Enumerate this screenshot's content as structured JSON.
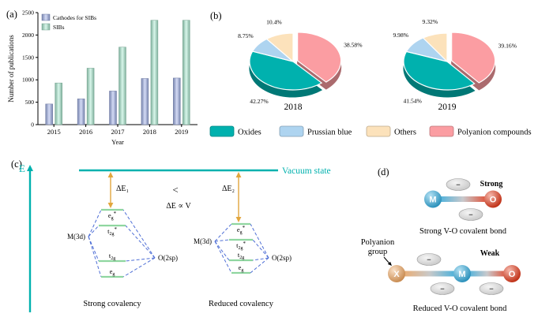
{
  "panels": {
    "a": {
      "label": "(a)"
    },
    "b": {
      "label": "(b)",
      "legend": [
        {
          "key": "oxides",
          "label": "Oxides"
        },
        {
          "key": "prussian",
          "label": "Prussian blue"
        },
        {
          "key": "others",
          "label": "Others"
        },
        {
          "key": "polyanion",
          "label": "Polyanion compounds"
        }
      ]
    },
    "c": {
      "label": "(c)",
      "axis_label": "E",
      "vacuum_label": "Vacuum state",
      "delta_e1": "ΔE₁",
      "less_than": "<",
      "delta_e2": "ΔE₂",
      "proportionality": "ΔE ∝ V",
      "m_level": "M(3d)",
      "o_level": "O(2sp)",
      "left_caption": "Strong covalency",
      "right_caption": "Reduced covalency",
      "levels": {
        "eg_star": {
          "base": "e",
          "sub": "g",
          "sup": "*"
        },
        "t2g_star": {
          "base": "t",
          "sub": "2g",
          "sup": "*"
        },
        "t2g": {
          "base": "t",
          "sub": "2g"
        },
        "eg": {
          "base": "e",
          "sub": "g"
        }
      }
    },
    "d": {
      "label": "(d)",
      "strong_label": "Strong",
      "weak_label": "Weak",
      "strong_caption": "Strong V-O covalent bond",
      "reduced_caption": "Reduced V-O covalent bond",
      "polyanion_label_1": "Polyanion",
      "polyanion_label_2": "group",
      "minus": "−",
      "atoms": {
        "m": "M",
        "o": "O",
        "x": "X"
      }
    }
  },
  "chart_data": [
    {
      "type": "bar",
      "categories": [
        "2015",
        "2016",
        "2017",
        "2018",
        "2019"
      ],
      "series": [
        {
          "name": "Cathodes for SIBs",
          "color": "#9fb0e8",
          "values": [
            460,
            575,
            750,
            1030,
            1040
          ]
        },
        {
          "name": "SIBs",
          "color": "#a9ead0",
          "values": [
            930,
            1260,
            1730,
            2330,
            2330
          ]
        }
      ],
      "xlabel": "Year",
      "ylabel": "Number of publications",
      "ylim": [
        0,
        2500
      ],
      "yticks": [
        0,
        500,
        1000,
        1500,
        2000,
        2500
      ],
      "legend_position": "top-left",
      "grid": false
    },
    {
      "type": "pie",
      "title": "2018",
      "labels": [
        "Polyanion compounds",
        "Oxides",
        "Prussian blue",
        "Others"
      ],
      "keys": [
        "polyanion",
        "oxides",
        "prussian",
        "others"
      ],
      "values": [
        38.58,
        42.27,
        8.75,
        10.4
      ],
      "display_labels": [
        "38.58%",
        "42.27%",
        "8.75%",
        "10.4%"
      ],
      "legend_position": "bottom"
    },
    {
      "type": "pie",
      "title": "2019",
      "labels": [
        "Polyanion compounds",
        "Oxides",
        "Prussian blue",
        "Others"
      ],
      "keys": [
        "polyanion",
        "oxides",
        "prussian",
        "others"
      ],
      "values": [
        39.16,
        41.54,
        9.98,
        9.32
      ],
      "display_labels": [
        "39.16%",
        "41.54%",
        "9.98%",
        "9.32%"
      ],
      "legend_position": "bottom"
    }
  ],
  "colors": {
    "teal": "#00b1ae",
    "pie": {
      "oxides": "#00b1ae",
      "prussian": "#aed4f0",
      "others": "#fce2bb",
      "polyanion": "#fb9da2"
    },
    "orange_arrow": "#e2a63d",
    "mo_dashed": "#4f6fd6",
    "level_green": "#8fd6a0",
    "atom_m": "#2babe0",
    "atom_o": "#e63312",
    "atom_x": "#f2a55c"
  }
}
